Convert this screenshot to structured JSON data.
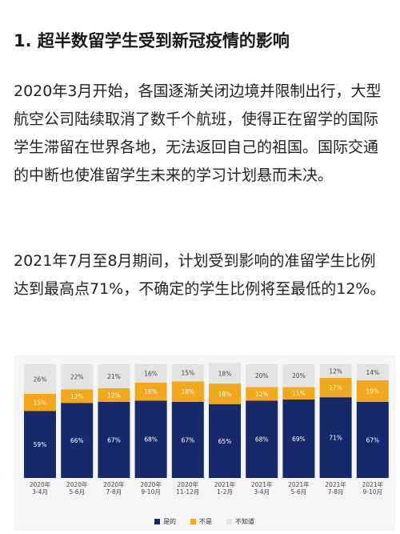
{
  "article": {
    "heading": "1. 超半数留学生受到新冠疫情的影响",
    "paragraph1": "2020年3月开始，各国逐渐关闭边境并限制出行，大型航空公司陆续取消了数千个航班，使得正在留学的国际学生滞留在世界各地，无法返回自己的祖国。国际交通的中断也使准留学生未来的学习计划悬而未决。",
    "paragraph2": "2021年7月至8月期间，计划受到影响的准留学生比例达到最高点71%，不确定的学生比例将至最低的12%。"
  },
  "chart_data": {
    "type": "bar",
    "stacked": true,
    "percent_stacked": true,
    "categories": [
      [
        "2020年",
        "3-4月"
      ],
      [
        "2020年",
        "5-6月"
      ],
      [
        "2020年",
        "7-8月"
      ],
      [
        "2020年",
        "9-10月"
      ],
      [
        "2020年",
        "11-12月"
      ],
      [
        "2021年",
        "1-2月"
      ],
      [
        "2021年",
        "3-4月"
      ],
      [
        "2021年",
        "5-6月"
      ],
      [
        "2021年",
        "7-8月"
      ],
      [
        "2021年",
        "9-10月"
      ]
    ],
    "series": [
      {
        "name": "是的",
        "color": "#16296b",
        "values": [
          59,
          66,
          67,
          68,
          67,
          65,
          68,
          69,
          71,
          67
        ]
      },
      {
        "name": "不是",
        "color": "#f3a81c",
        "values": [
          15,
          12,
          12,
          16,
          18,
          18,
          12,
          11,
          17,
          19
        ]
      },
      {
        "name": "不知道",
        "color": "#e3e3e3",
        "values": [
          26,
          22,
          21,
          16,
          15,
          18,
          20,
          20,
          12,
          14
        ]
      }
    ],
    "data_labels": [
      [
        "59%",
        "66%",
        "67%",
        "68%",
        "67%",
        "65%",
        "68%",
        "69%",
        "71%",
        "67%"
      ],
      [
        "15%",
        "12%",
        "12%",
        "16%",
        "18%",
        "18%",
        "12%",
        "11%",
        "17%",
        "19%"
      ],
      [
        "26%",
        "22%",
        "21%",
        "16%",
        "15%",
        "18%",
        "20%",
        "20%",
        "12%",
        "14%"
      ]
    ],
    "ylim": [
      0,
      100
    ],
    "grid": false,
    "legend_position": "bottom"
  }
}
